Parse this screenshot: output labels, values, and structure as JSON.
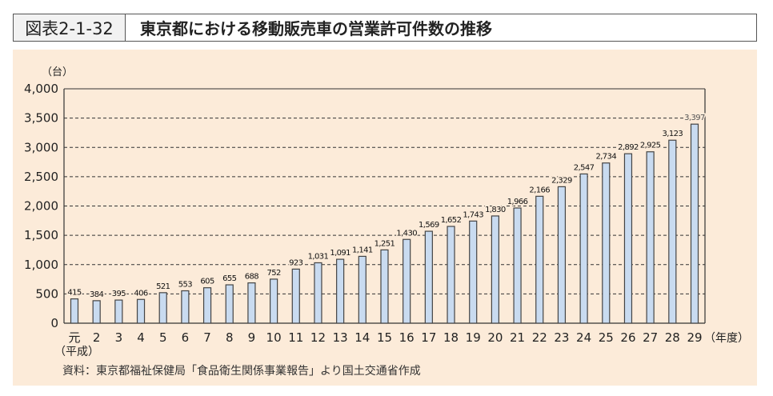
{
  "header": {
    "figure_number": "図表2-1-32",
    "title": "東京都における移動販売車の営業許可件数の推移"
  },
  "source": "資料：東京都福祉保健局「食品衛生関係事業報告」より国土交通省作成",
  "colors": {
    "bar": "#c9dbf0",
    "bar_edge": "#444444",
    "background": "#fcebd9"
  },
  "chart_data": {
    "type": "bar",
    "title": "",
    "ylabel": "（台）",
    "xlabel": "（年度）",
    "x_era_label": "（平成）",
    "ylim": [
      0,
      4000
    ],
    "yticks": [
      0,
      500,
      1000,
      1500,
      2000,
      2500,
      3000,
      3500,
      4000
    ],
    "ytick_labels": [
      "0",
      "500",
      "1,000",
      "1,500",
      "2,000",
      "2,500",
      "3,000",
      "3,500",
      "4,000"
    ],
    "grid": "horizontal dashed",
    "categories": [
      "元",
      "2",
      "3",
      "4",
      "5",
      "6",
      "7",
      "8",
      "9",
      "10",
      "11",
      "12",
      "13",
      "14",
      "15",
      "16",
      "17",
      "18",
      "19",
      "20",
      "21",
      "22",
      "23",
      "24",
      "25",
      "26",
      "27",
      "28",
      "29"
    ],
    "values": [
      415,
      384,
      395,
      406,
      521,
      553,
      605,
      655,
      688,
      752,
      923,
      1031,
      1091,
      1141,
      1251,
      1430,
      1569,
      1652,
      1743,
      1830,
      1966,
      2166,
      2329,
      2547,
      2734,
      2892,
      2925,
      3123,
      3397
    ],
    "data_labels": [
      "415",
      "384",
      "395",
      "406",
      "521",
      "553",
      "605",
      "655",
      "688",
      "752",
      "923",
      "1,031",
      "1,091",
      "1,141",
      "1,251",
      "1,430",
      "1,569",
      "1,652",
      "1,743",
      "1,830",
      "1,966",
      "2,166",
      "2,329",
      "2,547",
      "2,734",
      "2,892",
      "2,925",
      "3,123",
      "3,397"
    ]
  }
}
